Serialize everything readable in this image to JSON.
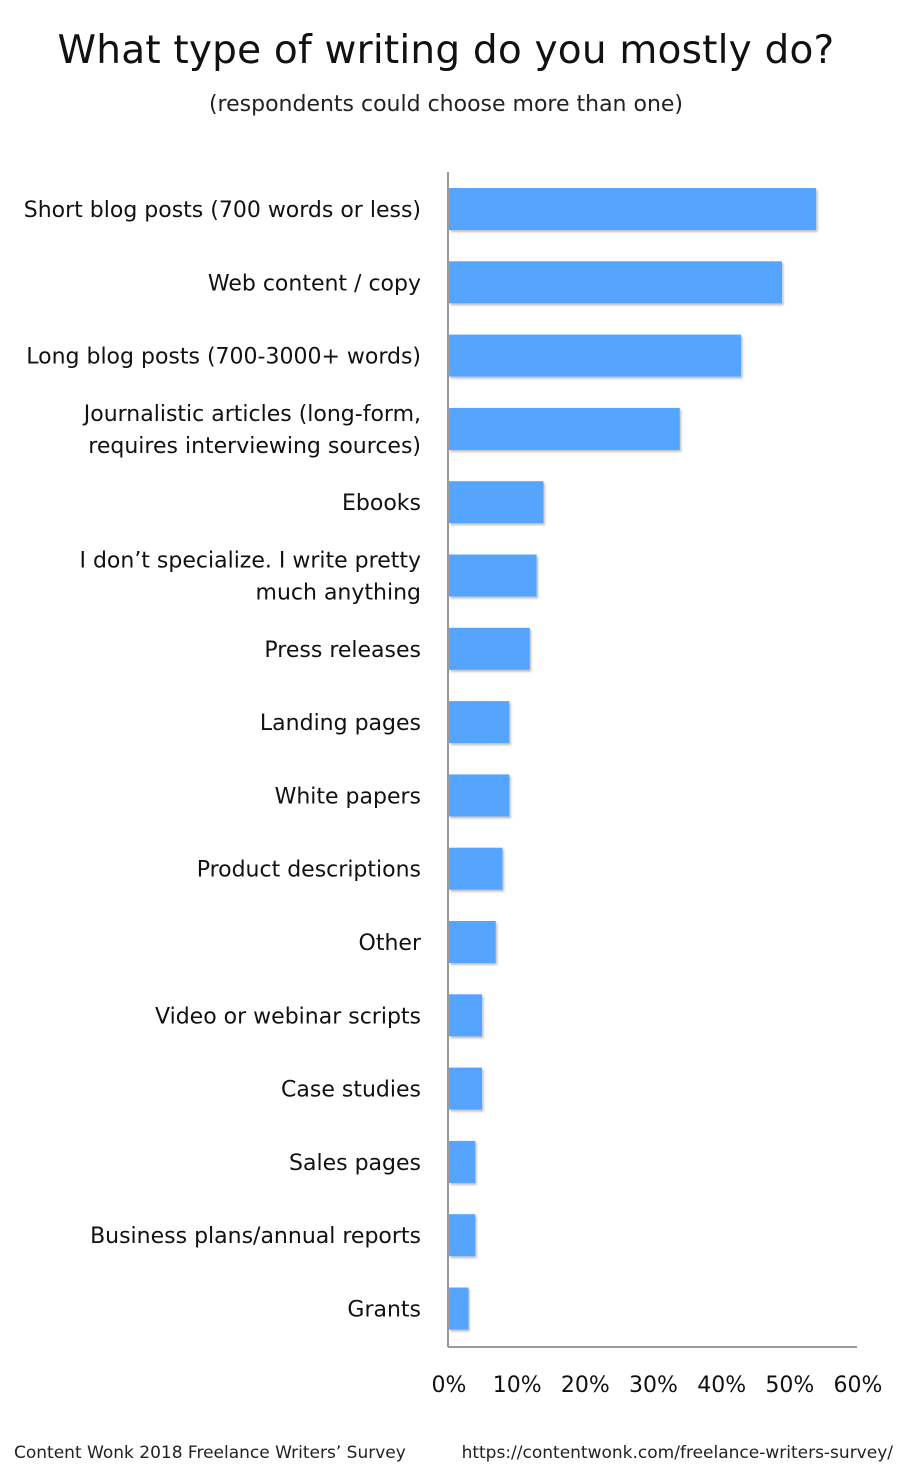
{
  "footer": {
    "source": "Content Wonk 2018 Freelance Writers’ Survey",
    "url": "https://contentwonk.com/freelance-writers-survey/"
  },
  "chart_data": {
    "type": "bar",
    "orientation": "horizontal",
    "title": "What type of writing do you mostly do?",
    "subtitle": "(respondents could choose more than one)",
    "xlabel": "",
    "ylabel": "",
    "xlim": [
      0,
      60
    ],
    "x_ticks": [
      "0%",
      "10%",
      "20%",
      "30%",
      "40%",
      "50%",
      "60%"
    ],
    "grid": false,
    "bar_color": "#55a4ff",
    "categories": [
      "Short blog posts (700 words or less)",
      "Web content / copy",
      "Long blog posts (700-3000+ words)",
      "Journalistic articles (long-form, requires interviewing sources)",
      "Ebooks",
      "I don’t specialize. I write pretty much anything",
      "Press releases",
      "Landing pages",
      "White papers",
      "Product descriptions",
      "Other",
      "Video or webinar scripts",
      "Case studies",
      "Sales pages",
      "Business plans/annual reports",
      "Grants"
    ],
    "category_lines": [
      [
        "Short blog posts (700 words or less)"
      ],
      [
        "Web content / copy"
      ],
      [
        "Long blog posts (700-3000+ words)"
      ],
      [
        "Journalistic articles (long-form,",
        "requires interviewing sources)"
      ],
      [
        "Ebooks"
      ],
      [
        "I don’t specialize. I write pretty",
        "much anything"
      ],
      [
        "Press releases"
      ],
      [
        "Landing pages"
      ],
      [
        "White papers"
      ],
      [
        "Product descriptions"
      ],
      [
        "Other"
      ],
      [
        "Video or webinar scripts"
      ],
      [
        "Case studies"
      ],
      [
        "Sales pages"
      ],
      [
        "Business plans/annual reports"
      ],
      [
        "Grants"
      ]
    ],
    "values": [
      54,
      49,
      43,
      34,
      14,
      13,
      12,
      9,
      9,
      8,
      7,
      5,
      5,
      4,
      4,
      3
    ]
  }
}
